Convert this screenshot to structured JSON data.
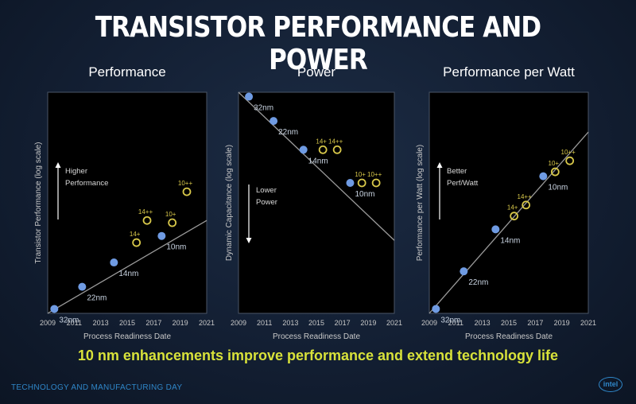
{
  "slide": {
    "title": "TRANSISTOR PERFORMANCE AND POWER",
    "subtitle": "10 nm enhancements improve performance and extend technology life",
    "footer": "TECHNOLOGY AND MANUFACTURING DAY",
    "logo_text": "intel"
  },
  "colors": {
    "node_dot": "#6f9be3",
    "enhancement_ring": "#d8c84a",
    "trend_line": "#9a9a9a",
    "plot_bg": "#000000",
    "axis_text": "#c8c8c8"
  },
  "chart_data": [
    {
      "type": "scatter",
      "title": "Performance",
      "xlabel": "Process Readiness Date",
      "ylabel": "Transistor Performance (log scale)",
      "xlim": [
        2009,
        2021
      ],
      "x_ticks": [
        2009,
        2011,
        2013,
        2015,
        2017,
        2019,
        2021
      ],
      "ylim": [
        0,
        100
      ],
      "annotation": {
        "lines": [
          "Higher",
          "Performance"
        ],
        "arrow": "up"
      },
      "trend_line": {
        "x": [
          2009,
          2021
        ],
        "y": [
          0,
          42
        ]
      },
      "series": [
        {
          "name": "nodes",
          "marker": "filled",
          "points": [
            {
              "x": 2009.5,
              "y": 2,
              "label": "32nm"
            },
            {
              "x": 2011.6,
              "y": 12,
              "label": "22nm"
            },
            {
              "x": 2014.0,
              "y": 23,
              "label": "14nm"
            },
            {
              "x": 2017.6,
              "y": 35,
              "label": "10nm"
            }
          ]
        },
        {
          "name": "enhancements",
          "marker": "ring",
          "points": [
            {
              "x": 2015.7,
              "y": 32,
              "label": "14+"
            },
            {
              "x": 2016.5,
              "y": 42,
              "label": "14++"
            },
            {
              "x": 2018.4,
              "y": 41,
              "label": "10+"
            },
            {
              "x": 2019.5,
              "y": 55,
              "label": "10++"
            }
          ]
        }
      ]
    },
    {
      "type": "scatter",
      "title": "Power",
      "xlabel": "Process Readiness Date",
      "ylabel": "Dynamic Capacitance (log scale)",
      "xlim": [
        2009,
        2021
      ],
      "x_ticks": [
        2009,
        2011,
        2013,
        2015,
        2017,
        2019,
        2021
      ],
      "ylim": [
        0,
        100
      ],
      "annotation": {
        "lines": [
          "Lower",
          "Power"
        ],
        "arrow": "down"
      },
      "trend_line": {
        "x": [
          2009,
          2021
        ],
        "y": [
          100,
          33
        ]
      },
      "series": [
        {
          "name": "nodes",
          "marker": "filled",
          "points": [
            {
              "x": 2009.8,
              "y": 98,
              "label": "32nm"
            },
            {
              "x": 2011.7,
              "y": 87,
              "label": "22nm"
            },
            {
              "x": 2014.0,
              "y": 74,
              "label": "14nm"
            },
            {
              "x": 2017.6,
              "y": 59,
              "label": "10nm"
            }
          ]
        },
        {
          "name": "enhancements",
          "marker": "ring",
          "points": [
            {
              "x": 2015.5,
              "y": 74,
              "label": "14+"
            },
            {
              "x": 2016.6,
              "y": 74,
              "label": "14++"
            },
            {
              "x": 2018.5,
              "y": 59,
              "label": "10+"
            },
            {
              "x": 2019.6,
              "y": 59,
              "label": "10++"
            }
          ]
        }
      ]
    },
    {
      "type": "scatter",
      "title": "Performance per Watt",
      "xlabel": "Process Readiness Date",
      "ylabel": "Performance per Watt (log scale)",
      "xlim": [
        2009,
        2021
      ],
      "x_ticks": [
        2009,
        2011,
        2013,
        2015,
        2017,
        2019,
        2021
      ],
      "ylim": [
        0,
        100
      ],
      "annotation": {
        "lines": [
          "Better",
          "Perf/Watt"
        ],
        "arrow": "up"
      },
      "trend_line": {
        "x": [
          2009,
          2021
        ],
        "y": [
          0,
          82
        ]
      },
      "series": [
        {
          "name": "nodes",
          "marker": "filled",
          "points": [
            {
              "x": 2009.5,
              "y": 2,
              "label": "32nm"
            },
            {
              "x": 2011.6,
              "y": 19,
              "label": "22nm"
            },
            {
              "x": 2014.0,
              "y": 38,
              "label": "14nm"
            },
            {
              "x": 2017.6,
              "y": 62,
              "label": "10nm"
            }
          ]
        },
        {
          "name": "enhancements",
          "marker": "ring",
          "points": [
            {
              "x": 2015.4,
              "y": 44,
              "label": "14+"
            },
            {
              "x": 2016.3,
              "y": 49,
              "label": "14++"
            },
            {
              "x": 2018.5,
              "y": 64,
              "label": "10+"
            },
            {
              "x": 2019.6,
              "y": 69,
              "label": "10++"
            }
          ]
        }
      ]
    }
  ]
}
